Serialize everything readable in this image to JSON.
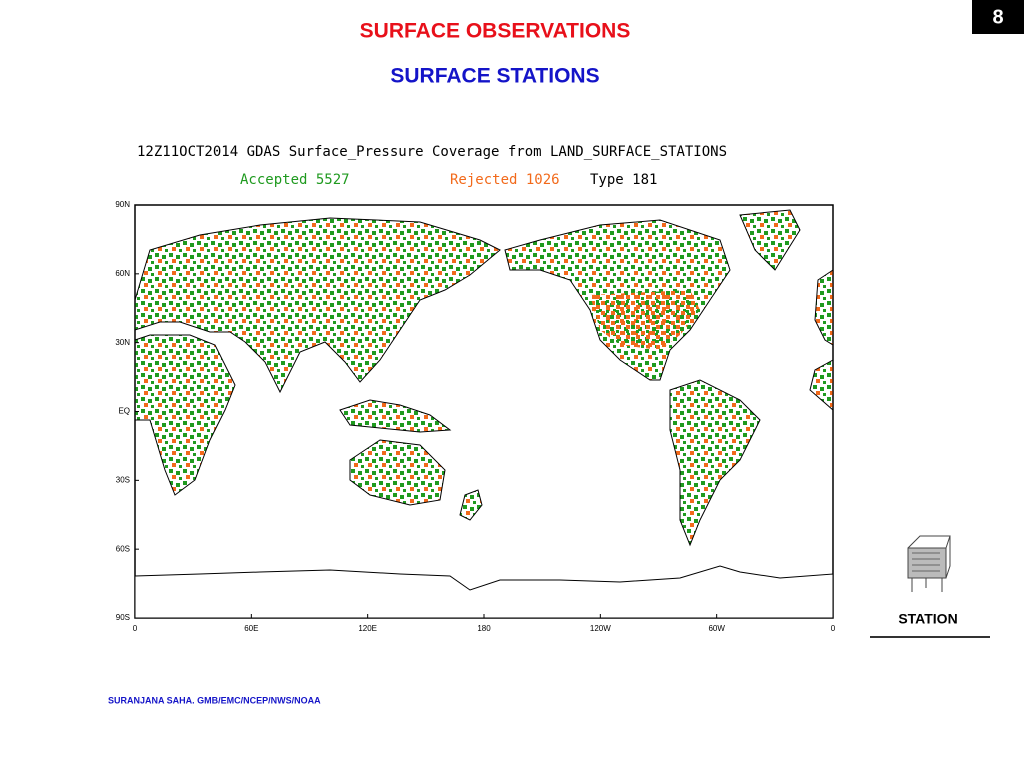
{
  "page_number": "8",
  "title": "SURFACE OBSERVATIONS",
  "subtitle": "SURFACE STATIONS",
  "map": {
    "title": "12Z11OCT2014 GDAS Surface_Pressure Coverage from LAND_SURFACE_STATIONS",
    "legend": [
      {
        "label": "Accepted 5527",
        "color": "#1f9a1f"
      },
      {
        "label": "Rejected 1026",
        "color": "#f26a1b"
      },
      {
        "label": "Type 181",
        "color": "#000000"
      }
    ],
    "lat_labels": [
      "90N",
      "60N",
      "30N",
      "EQ",
      "30S",
      "60S",
      "90S"
    ],
    "lon_labels": [
      "0",
      "60E",
      "120E",
      "180",
      "120W",
      "60W",
      "0"
    ]
  },
  "icon_label": "STATION",
  "footer": "SURANJANA SAHA. GMB/EMC/NCEP/NWS/NOAA"
}
